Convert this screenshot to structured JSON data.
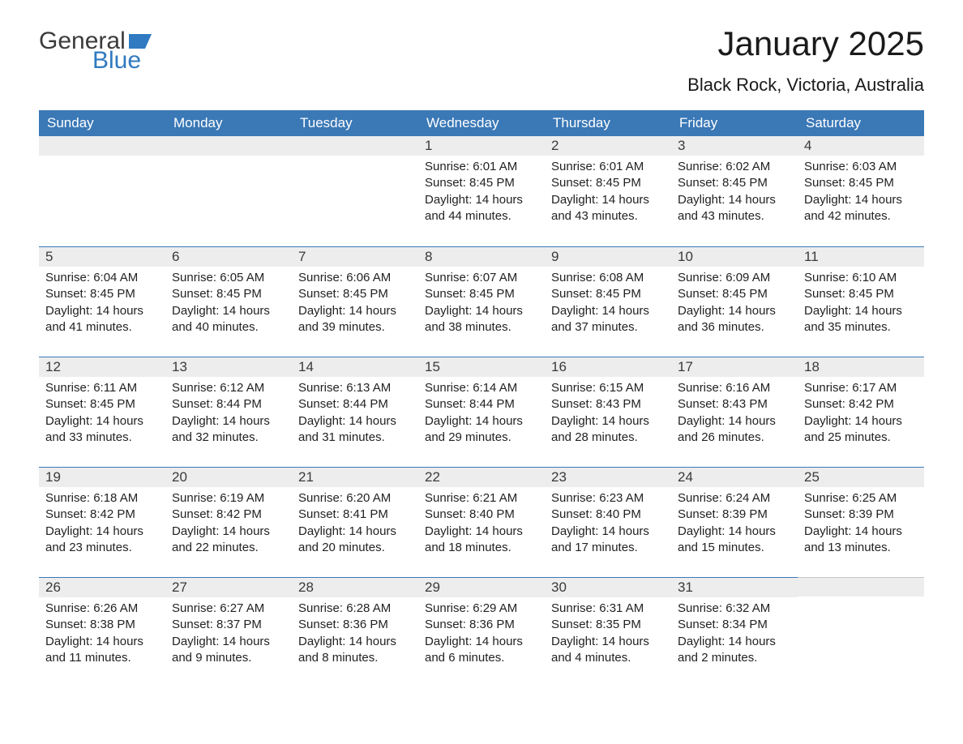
{
  "logo": {
    "text1": "General",
    "text2": "Blue",
    "flag_color": "#2f7ac0"
  },
  "title": "January 2025",
  "location": "Black Rock, Victoria, Australia",
  "colors": {
    "header_bg": "#3a78b6",
    "header_text": "#ffffff",
    "daybar_bg": "#ededed",
    "daybar_border": "#3a78b6",
    "body_text": "#222222",
    "page_bg": "#ffffff"
  },
  "day_headers": [
    "Sunday",
    "Monday",
    "Tuesday",
    "Wednesday",
    "Thursday",
    "Friday",
    "Saturday"
  ],
  "weeks": [
    [
      {
        "num": "",
        "sunrise": "",
        "sunset": "",
        "daylight": ""
      },
      {
        "num": "",
        "sunrise": "",
        "sunset": "",
        "daylight": ""
      },
      {
        "num": "",
        "sunrise": "",
        "sunset": "",
        "daylight": ""
      },
      {
        "num": "1",
        "sunrise": "Sunrise: 6:01 AM",
        "sunset": "Sunset: 8:45 PM",
        "daylight": "Daylight: 14 hours and 44 minutes."
      },
      {
        "num": "2",
        "sunrise": "Sunrise: 6:01 AM",
        "sunset": "Sunset: 8:45 PM",
        "daylight": "Daylight: 14 hours and 43 minutes."
      },
      {
        "num": "3",
        "sunrise": "Sunrise: 6:02 AM",
        "sunset": "Sunset: 8:45 PM",
        "daylight": "Daylight: 14 hours and 43 minutes."
      },
      {
        "num": "4",
        "sunrise": "Sunrise: 6:03 AM",
        "sunset": "Sunset: 8:45 PM",
        "daylight": "Daylight: 14 hours and 42 minutes."
      }
    ],
    [
      {
        "num": "5",
        "sunrise": "Sunrise: 6:04 AM",
        "sunset": "Sunset: 8:45 PM",
        "daylight": "Daylight: 14 hours and 41 minutes."
      },
      {
        "num": "6",
        "sunrise": "Sunrise: 6:05 AM",
        "sunset": "Sunset: 8:45 PM",
        "daylight": "Daylight: 14 hours and 40 minutes."
      },
      {
        "num": "7",
        "sunrise": "Sunrise: 6:06 AM",
        "sunset": "Sunset: 8:45 PM",
        "daylight": "Daylight: 14 hours and 39 minutes."
      },
      {
        "num": "8",
        "sunrise": "Sunrise: 6:07 AM",
        "sunset": "Sunset: 8:45 PM",
        "daylight": "Daylight: 14 hours and 38 minutes."
      },
      {
        "num": "9",
        "sunrise": "Sunrise: 6:08 AM",
        "sunset": "Sunset: 8:45 PM",
        "daylight": "Daylight: 14 hours and 37 minutes."
      },
      {
        "num": "10",
        "sunrise": "Sunrise: 6:09 AM",
        "sunset": "Sunset: 8:45 PM",
        "daylight": "Daylight: 14 hours and 36 minutes."
      },
      {
        "num": "11",
        "sunrise": "Sunrise: 6:10 AM",
        "sunset": "Sunset: 8:45 PM",
        "daylight": "Daylight: 14 hours and 35 minutes."
      }
    ],
    [
      {
        "num": "12",
        "sunrise": "Sunrise: 6:11 AM",
        "sunset": "Sunset: 8:45 PM",
        "daylight": "Daylight: 14 hours and 33 minutes."
      },
      {
        "num": "13",
        "sunrise": "Sunrise: 6:12 AM",
        "sunset": "Sunset: 8:44 PM",
        "daylight": "Daylight: 14 hours and 32 minutes."
      },
      {
        "num": "14",
        "sunrise": "Sunrise: 6:13 AM",
        "sunset": "Sunset: 8:44 PM",
        "daylight": "Daylight: 14 hours and 31 minutes."
      },
      {
        "num": "15",
        "sunrise": "Sunrise: 6:14 AM",
        "sunset": "Sunset: 8:44 PM",
        "daylight": "Daylight: 14 hours and 29 minutes."
      },
      {
        "num": "16",
        "sunrise": "Sunrise: 6:15 AM",
        "sunset": "Sunset: 8:43 PM",
        "daylight": "Daylight: 14 hours and 28 minutes."
      },
      {
        "num": "17",
        "sunrise": "Sunrise: 6:16 AM",
        "sunset": "Sunset: 8:43 PM",
        "daylight": "Daylight: 14 hours and 26 minutes."
      },
      {
        "num": "18",
        "sunrise": "Sunrise: 6:17 AM",
        "sunset": "Sunset: 8:42 PM",
        "daylight": "Daylight: 14 hours and 25 minutes."
      }
    ],
    [
      {
        "num": "19",
        "sunrise": "Sunrise: 6:18 AM",
        "sunset": "Sunset: 8:42 PM",
        "daylight": "Daylight: 14 hours and 23 minutes."
      },
      {
        "num": "20",
        "sunrise": "Sunrise: 6:19 AM",
        "sunset": "Sunset: 8:42 PM",
        "daylight": "Daylight: 14 hours and 22 minutes."
      },
      {
        "num": "21",
        "sunrise": "Sunrise: 6:20 AM",
        "sunset": "Sunset: 8:41 PM",
        "daylight": "Daylight: 14 hours and 20 minutes."
      },
      {
        "num": "22",
        "sunrise": "Sunrise: 6:21 AM",
        "sunset": "Sunset: 8:40 PM",
        "daylight": "Daylight: 14 hours and 18 minutes."
      },
      {
        "num": "23",
        "sunrise": "Sunrise: 6:23 AM",
        "sunset": "Sunset: 8:40 PM",
        "daylight": "Daylight: 14 hours and 17 minutes."
      },
      {
        "num": "24",
        "sunrise": "Sunrise: 6:24 AM",
        "sunset": "Sunset: 8:39 PM",
        "daylight": "Daylight: 14 hours and 15 minutes."
      },
      {
        "num": "25",
        "sunrise": "Sunrise: 6:25 AM",
        "sunset": "Sunset: 8:39 PM",
        "daylight": "Daylight: 14 hours and 13 minutes."
      }
    ],
    [
      {
        "num": "26",
        "sunrise": "Sunrise: 6:26 AM",
        "sunset": "Sunset: 8:38 PM",
        "daylight": "Daylight: 14 hours and 11 minutes."
      },
      {
        "num": "27",
        "sunrise": "Sunrise: 6:27 AM",
        "sunset": "Sunset: 8:37 PM",
        "daylight": "Daylight: 14 hours and 9 minutes."
      },
      {
        "num": "28",
        "sunrise": "Sunrise: 6:28 AM",
        "sunset": "Sunset: 8:36 PM",
        "daylight": "Daylight: 14 hours and 8 minutes."
      },
      {
        "num": "29",
        "sunrise": "Sunrise: 6:29 AM",
        "sunset": "Sunset: 8:36 PM",
        "daylight": "Daylight: 14 hours and 6 minutes."
      },
      {
        "num": "30",
        "sunrise": "Sunrise: 6:31 AM",
        "sunset": "Sunset: 8:35 PM",
        "daylight": "Daylight: 14 hours and 4 minutes."
      },
      {
        "num": "31",
        "sunrise": "Sunrise: 6:32 AM",
        "sunset": "Sunset: 8:34 PM",
        "daylight": "Daylight: 14 hours and 2 minutes."
      },
      {
        "num": "",
        "sunrise": "",
        "sunset": "",
        "daylight": ""
      }
    ]
  ]
}
